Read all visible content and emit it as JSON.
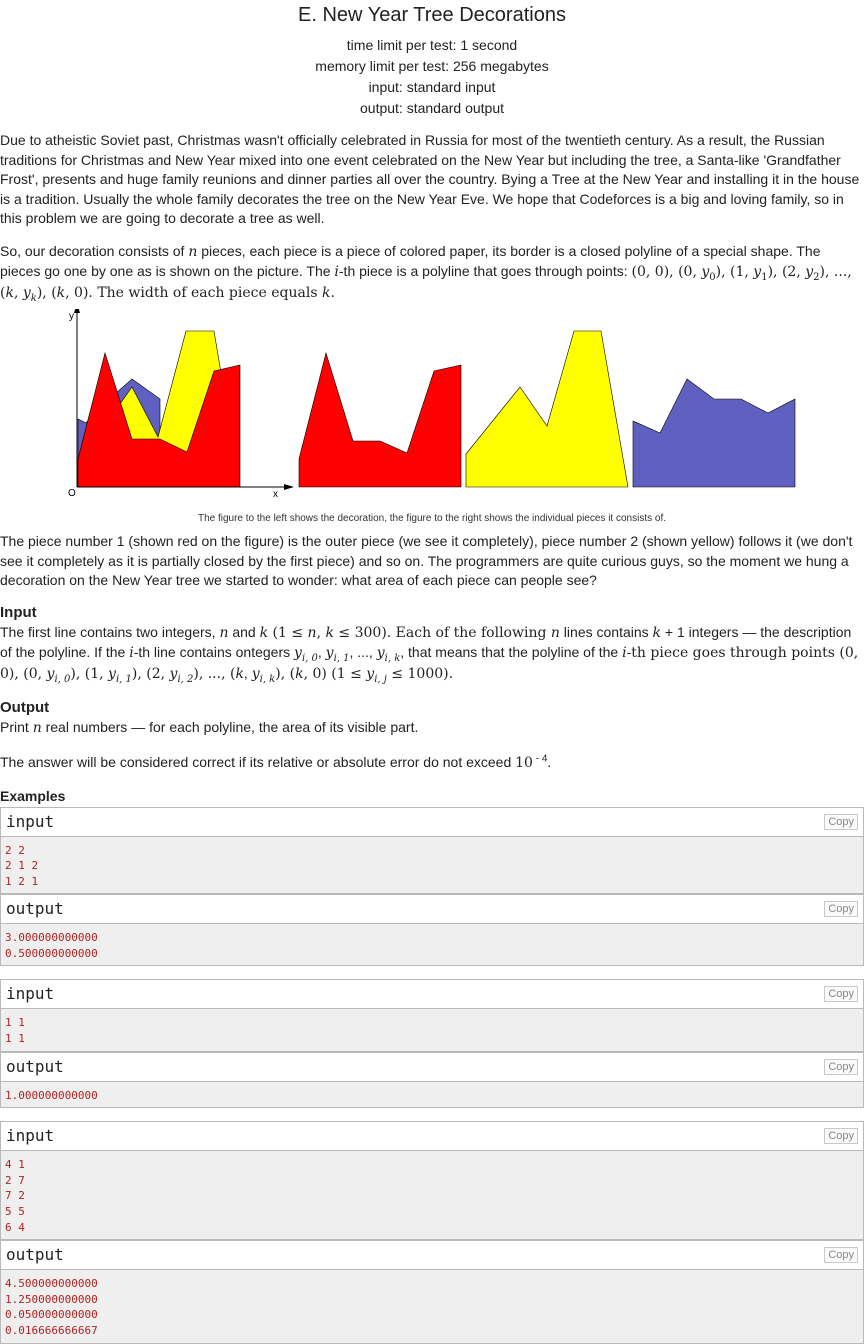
{
  "header": {
    "title": "E. New Year Tree Decorations",
    "time_limit": "time limit per test: 1 second",
    "memory_limit": "memory limit per test: 256 megabytes",
    "input": "input: standard input",
    "output": "output: standard output"
  },
  "statement": {
    "p1": "Due to atheistic Soviet past, Christmas wasn't officially celebrated in Russia for most of the twentieth century. As a result, the Russian traditions for Christmas and New Year mixed into one event celebrated on the New Year but including the tree, a Santa-like 'Grandfather Frost', presents and huge family reunions and dinner parties all over the country. Bying a Tree at the New Year and installing it in the house is a tradition. Usually the whole family decorates the tree on the New Year Eve. We hope that Codeforces is a big and loving family, so in this problem we are going to decorate a tree as well.",
    "p2_a": "So, our decoration consists of ",
    "p2_b": " pieces, each piece is a piece of colored paper, its border is a closed polyline of a special shape. The pieces go one by one as is shown on the picture. The ",
    "p2_c": "-th piece is a polyline that goes through points: ",
    "p2_pts1": "(0, 0), (0, ",
    "p2_pts2": "), (1, ",
    "p2_pts3": "), (2, ",
    "p2_pts4": "), ..., (",
    "p2_pts5": "), (",
    "p2_pts6": ", 0). The width of each piece equals ",
    "var_n": "n",
    "var_i": "i",
    "var_k": "k",
    "var_y": "y",
    "caption": "The figure to the left shows the decoration, the figure to the right shows the individual pieces it consists of.",
    "p3": "The piece number 1 (shown red on the figure) is the outer piece (we see it completely), piece number 2 (shown yellow) follows it (we don't see it completely as it is partially closed by the first piece) and so on. The programmers are quite curious guys, so the moment we hung a decoration on the New Year tree we started to wonder: what area of each piece can people see?"
  },
  "figure": {
    "axis_y": "y",
    "axis_x": "x",
    "origin": "O",
    "colors": {
      "red": "#ff0000",
      "yellow": "#ffff00",
      "blue": "#6060c0"
    }
  },
  "input_section": {
    "title": "Input",
    "t1": "The first line contains two integers, ",
    "t2": " and ",
    "t3": " (1 ≤ ",
    "t4": ", ",
    "t5": " ≤ 300). Each of the following ",
    "t6": " lines contains ",
    "t7": " + 1 integers — the description of the polyline. If the ",
    "t8": "-th line contains ontegers ",
    "t9": ", that means that the polyline of the ",
    "t10": "-th piece goes through points (0, 0), (0, ",
    "t11": "), (1, ",
    "t12": "), (2, ",
    "t13": "), ..., (",
    "t14": "), (",
    "t15": ", 0) (1 ≤ ",
    "t16": " ≤ 1000)."
  },
  "output_section": {
    "title": "Output",
    "t1": "Print ",
    "t2": " real numbers — for each polyline, the area of its visible part.",
    "t3": "The answer will be considered correct if its relative or absolute error do not exceed ",
    "t4": "10",
    "t5": " - 4",
    "t6": "."
  },
  "examples": {
    "title": "Examples",
    "input_label": "input",
    "output_label": "output",
    "copy_label": "Copy",
    "list": [
      {
        "input": "2 2\n2 1 2\n1 2 1",
        "output": "3.000000000000\n0.500000000000"
      },
      {
        "input": "1 1\n1 1",
        "output": "1.000000000000"
      },
      {
        "input": "4 1\n2 7\n7 2\n5 5\n6 4",
        "output": "4.500000000000\n1.250000000000\n0.050000000000\n0.016666666667"
      }
    ]
  }
}
